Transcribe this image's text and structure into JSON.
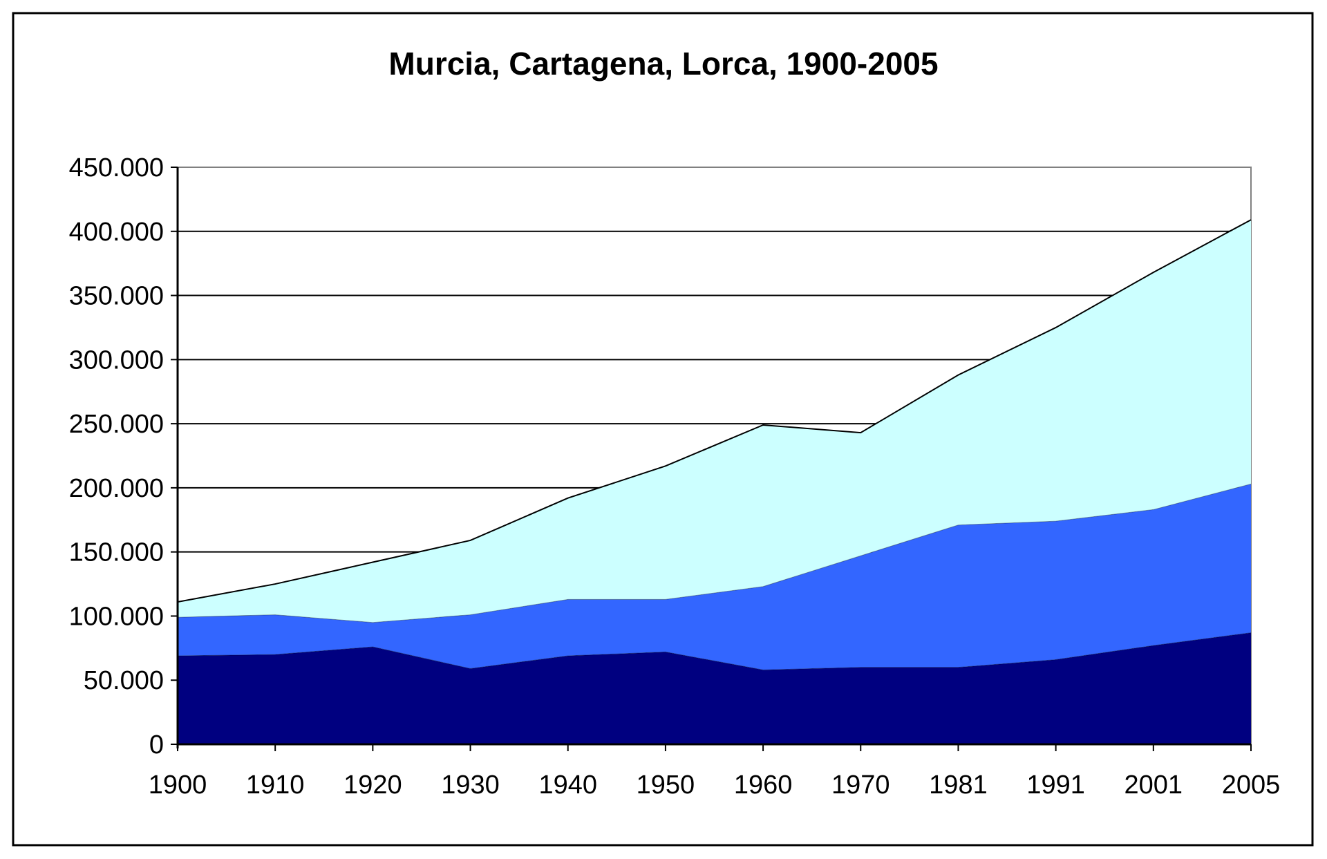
{
  "chart_data": {
    "type": "area",
    "stacked": true,
    "title": "Murcia, Cartagena, Lorca, 1900-2005",
    "xlabel": "",
    "ylabel": "",
    "categories": [
      "1900",
      "1910",
      "1920",
      "1930",
      "1940",
      "1950",
      "1960",
      "1970",
      "1981",
      "1991",
      "2001",
      "2005"
    ],
    "ylim": [
      0,
      450000
    ],
    "yticks": [
      0,
      50000,
      100000,
      150000,
      200000,
      250000,
      300000,
      350000,
      400000,
      450000
    ],
    "ytick_labels": [
      "0",
      "50.000",
      "100.000",
      "150.000",
      "200.000",
      "250.000",
      "300.000",
      "350.000",
      "400.000",
      "450.000"
    ],
    "grid": "horizontal",
    "legend": "none",
    "series": [
      {
        "color": "#000080",
        "values": [
          69000,
          70000,
          76000,
          59000,
          69000,
          72000,
          58000,
          60000,
          60000,
          66000,
          77000,
          87000
        ]
      },
      {
        "color": "#3366FF",
        "values": [
          30000,
          31000,
          19000,
          42000,
          44000,
          41000,
          65000,
          87000,
          111000,
          108000,
          106000,
          116000
        ]
      },
      {
        "color": "#CCFFFF",
        "values": [
          12000,
          24000,
          47000,
          58000,
          79000,
          104000,
          126000,
          96000,
          117000,
          151000,
          185000,
          206000
        ]
      }
    ]
  }
}
